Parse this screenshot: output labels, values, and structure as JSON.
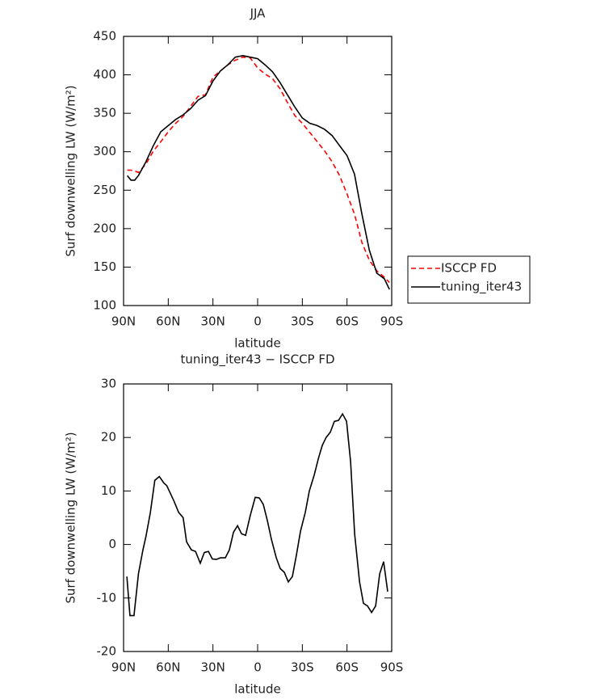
{
  "chart_data": [
    {
      "type": "line",
      "title": "JJA",
      "xlabel": "latitude",
      "ylabel": "Surf downwelling LW (W/m²)",
      "x": [
        87.5,
        85,
        82.5,
        80,
        75,
        70,
        65,
        60,
        55,
        50,
        45,
        40,
        35,
        30,
        25,
        20,
        15,
        10,
        5,
        0,
        -5,
        -10,
        -15,
        -20,
        -25,
        -30,
        -35,
        -40,
        -45,
        -50,
        -55,
        -60,
        -65,
        -70,
        -75,
        -80,
        -85,
        -88.5
      ],
      "series": [
        {
          "name": "ISCCP FD",
          "color": "#ff0000",
          "linestyle": "dashed",
          "values": [
            276,
            276,
            275,
            273,
            284,
            301,
            313,
            326,
            337,
            346,
            359,
            372,
            374,
            397,
            405,
            413,
            419,
            423,
            422,
            409,
            401,
            395,
            382,
            364,
            347,
            337,
            325,
            313,
            301,
            287,
            269,
            245,
            219,
            182,
            159,
            145,
            137,
            130
          ]
        },
        {
          "name": "tuning_iter43",
          "color": "#000000",
          "linestyle": "solid",
          "values": [
            269,
            263,
            263,
            269,
            287,
            308,
            326,
            334,
            342,
            348,
            356,
            367,
            373,
            392,
            405,
            413,
            423,
            425,
            423,
            421,
            413,
            404,
            390,
            374,
            358,
            344,
            337,
            334,
            329,
            321,
            308,
            295,
            271,
            219,
            172,
            142,
            135,
            121
          ]
        }
      ],
      "xlim": [
        90,
        -90
      ],
      "xticks": [
        {
          "value": 90,
          "label": "90N"
        },
        {
          "value": 60,
          "label": "60N"
        },
        {
          "value": 30,
          "label": "30N"
        },
        0,
        {
          "value": -30,
          "label": "30S"
        },
        {
          "value": -60,
          "label": "60S"
        },
        {
          "value": -90,
          "label": "90S"
        }
      ],
      "ylim": [
        100,
        450
      ],
      "yticks": [
        100,
        150,
        200,
        250,
        300,
        350,
        400,
        450
      ],
      "legend": "outside-right"
    },
    {
      "type": "line",
      "title": "tuning_iter43 − ISCCP FD",
      "xlabel": "latitude",
      "ylabel": "Surf downwelling LW (W/m²)",
      "x": [
        87.8,
        85.7,
        83,
        80,
        77,
        75,
        72,
        69,
        66,
        63,
        61,
        58.5,
        56,
        53,
        50,
        47.7,
        44.5,
        41.7,
        38.5,
        35.8,
        33,
        30.4,
        27.7,
        25,
        21.7,
        19,
        16.2,
        13.5,
        10.8,
        8.1,
        4.9,
        1.6,
        -1.1,
        -3.8,
        -6.5,
        -9.2,
        -12.5,
        -15.2,
        -17.9,
        -20.6,
        -23.3,
        -26,
        -28.8,
        -32,
        -34.7,
        -38,
        -40.7,
        -43.4,
        -46,
        -48.8,
        -51.5,
        -54.3,
        -57,
        -59.7,
        -62.4,
        -65.1,
        -68.4,
        -71,
        -73.8,
        -76.5,
        -79.2,
        -81.9,
        -84.6,
        -87.3
      ],
      "color": "#000000",
      "values": [
        -6,
        -13.3,
        -13.3,
        -5.5,
        -1,
        1.5,
        6,
        12,
        12.7,
        11.5,
        11,
        9.5,
        8,
        6,
        5,
        0.5,
        -1,
        -1.3,
        -3.5,
        -1.5,
        -1.3,
        -2.7,
        -2.8,
        -2.5,
        -2.5,
        -1,
        2.3,
        3.5,
        2,
        1.7,
        5.5,
        8.8,
        8.7,
        7.5,
        4.5,
        1,
        -2.5,
        -4.5,
        -5.2,
        -7,
        -6,
        -2,
        2.5,
        6,
        10,
        13,
        16,
        18.5,
        20,
        21,
        23,
        23.2,
        24.4,
        23,
        15.5,
        2,
        -7,
        -11,
        -11.5,
        -12.7,
        -11.5,
        -5.5,
        -3.2,
        -8.8
      ],
      "xlim": [
        90,
        -90
      ],
      "xticks": [
        {
          "value": 90,
          "label": "90N"
        },
        {
          "value": 60,
          "label": "60N"
        },
        {
          "value": 30,
          "label": "30N"
        },
        0,
        {
          "value": -30,
          "label": "30S"
        },
        {
          "value": -60,
          "label": "60S"
        },
        {
          "value": -90,
          "label": "90S"
        }
      ],
      "ylim": [
        -20,
        30
      ],
      "yticks": [
        -20,
        -10,
        0,
        10,
        20,
        30
      ]
    }
  ]
}
